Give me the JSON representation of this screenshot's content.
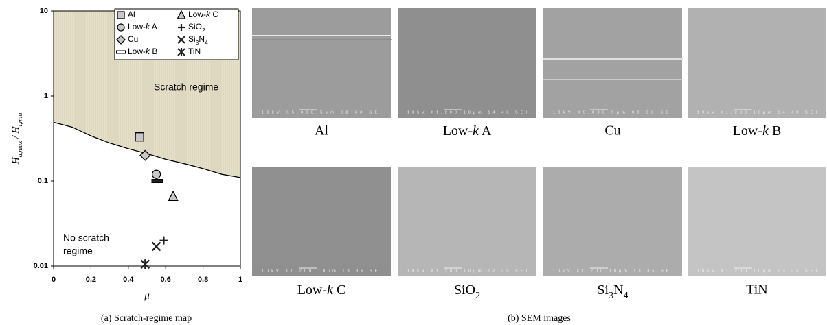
{
  "chart_data": {
    "type": "scatter",
    "ylabel": [
      {
        "text": "H",
        "sub": false
      },
      {
        "text": "a,max",
        "sub": true
      },
      {
        "text": " / H",
        "sub": false
      },
      {
        "text": "l,min",
        "sub": true
      }
    ],
    "xlabel": "μ",
    "xlim": [
      0,
      1
    ],
    "xticks": [
      0,
      0.2,
      0.4,
      0.6,
      0.8,
      1
    ],
    "ylim": [
      0.01,
      10
    ],
    "yticks": [
      0.01,
      0.1,
      1,
      10
    ],
    "log_y": true,
    "grid": false,
    "annotations": [
      "Scratch regime",
      "No scratch",
      "regime"
    ],
    "caption": "(a) Scratch-regime map",
    "boundary": {
      "color": "#000000",
      "fill": "#e6e0c8",
      "x": [
        0,
        0.1,
        0.2,
        0.3,
        0.4,
        0.5,
        0.6,
        0.7,
        0.8,
        0.9,
        1
      ],
      "values": [
        0.49,
        0.43,
        0.34,
        0.28,
        0.24,
        0.21,
        0.18,
        0.16,
        0.14,
        0.12,
        0.11
      ]
    },
    "series": [
      {
        "name": "Al",
        "marker": "square",
        "color": "#c8c8c8",
        "x": [
          0.46
        ],
        "values": [
          0.33
        ]
      },
      {
        "name": "Low-k A",
        "marker": "circle",
        "color": "#c8c8c8",
        "x": [
          0.55
        ],
        "values": [
          0.12
        ]
      },
      {
        "name": "Cu",
        "marker": "diamond",
        "color": "#c8c8c8",
        "x": [
          0.49
        ],
        "values": [
          0.2
        ]
      },
      {
        "name": "Low-k B",
        "marker": "bar",
        "color": "#222222",
        "x": [
          0.555
        ],
        "values": [
          0.1
        ]
      },
      {
        "name": "Low-k C",
        "marker": "triangle",
        "color": "#c8c8c8",
        "x": [
          0.64
        ],
        "values": [
          0.066
        ]
      },
      {
        "name": "SiO2",
        "marker": "plus",
        "color": "#222222",
        "x": [
          0.59
        ],
        "values": [
          0.02
        ]
      },
      {
        "name": "Si3N4",
        "marker": "cross",
        "color": "#222222",
        "x": [
          0.55
        ],
        "values": [
          0.017
        ]
      },
      {
        "name": "TiN",
        "marker": "asterisk",
        "color": "#222222",
        "x": [
          0.49
        ],
        "values": [
          0.0105
        ]
      }
    ]
  },
  "sem": {
    "caption": "(b) SEM images",
    "panels": [
      {
        "label": "Al",
        "info": "10kV  X5,000  5μm  08 33 SEI",
        "color": "#9c9c9c"
      },
      {
        "label": "Low-k A",
        "info": "10kV  X1,200  10μm  14 40 SEI",
        "color": "#8f8f8f"
      },
      {
        "label": "Cu",
        "info": "10kV  X5,000  5μm  08 36 SEI",
        "color": "#a2a2a2"
      },
      {
        "label": "Low-k B",
        "info": "10kV  X1,200  10μm  14 40 SEI",
        "color": "#b1b1b1"
      },
      {
        "label": "Low-k C",
        "info": "10kV  X1,200  10μm  13 35 SEI",
        "color": "#909090"
      },
      {
        "label": "SiO2",
        "info": "10kV  X1,200  10μm  13 35 SEI",
        "color": "#b6b6b6"
      },
      {
        "label": "Si3N4",
        "info": "10kV  X1,200  10μm  13 35 SEI",
        "color": "#acacac"
      },
      {
        "label": "TiN",
        "info": "10kV  X1,200  10μm  13 35 SEI",
        "color": "#c4c4c4"
      }
    ]
  }
}
